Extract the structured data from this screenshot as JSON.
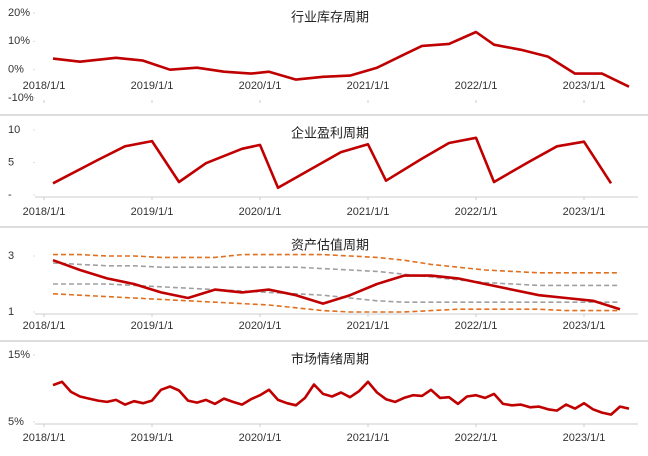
{
  "chart_data": [
    {
      "type": "line",
      "title": "行业库存周期",
      "x": [
        "2018/2/1",
        "2018/5/1",
        "2018/9/1",
        "2018/12/1",
        "2019/3/1",
        "2019/6/1",
        "2019/9/1",
        "2019/12/1",
        "2020/2/1",
        "2020/5/1",
        "2020/8/1",
        "2020/11/1",
        "2021/2/1",
        "2021/5/1",
        "2021/7/1",
        "2021/10/1",
        "2022/1/1",
        "2022/3/1",
        "2022/6/1",
        "2022/9/1",
        "2022/12/1",
        "2023/3/1",
        "2023/6/1"
      ],
      "series": [
        {
          "color": "#c00000",
          "values": [
            3.9,
            2.8,
            4.2,
            3.2,
            0,
            0.7,
            -0.7,
            -1.4,
            -0.7,
            -3.5,
            -2.5,
            -2.1,
            0.7,
            5.3,
            8.4,
            9.1,
            13.3,
            8.8,
            7,
            4.6,
            -1.4,
            -1.4,
            -6
          ]
        }
      ],
      "xlim": [
        "2017/12/1",
        "2023/7/1"
      ],
      "xticks": [
        "2018/1/1",
        "2019/1/1",
        "2020/1/1",
        "2021/1/1",
        "2022/1/1",
        "2023/1/1"
      ],
      "ylim": [
        -10,
        20
      ],
      "yticks": [
        {
          "value": 20,
          "label": "20%"
        },
        {
          "value": 10,
          "label": "10%"
        },
        {
          "value": 0,
          "label": "0%"
        },
        {
          "value": -10,
          "label": "-10%"
        }
      ]
    },
    {
      "type": "line",
      "title": "企业盈利周期",
      "x": [
        "2018/2/1",
        "2018/7/1",
        "2018/10/1",
        "2019/1/1",
        "2019/4/1",
        "2019/7/1",
        "2019/11/1",
        "2020/1/1",
        "2020/3/1",
        "2020/10/1",
        "2021/1/1",
        "2021/3/1",
        "2021/7/1",
        "2021/10/1",
        "2022/1/1",
        "2022/3/1",
        "2022/7/1",
        "2022/10/1",
        "2023/1/1",
        "2023/4/1"
      ],
      "series": [
        {
          "color": "#c00000",
          "values": [
            1.8,
            5.4,
            7.5,
            8.3,
            2.0,
            4.9,
            7.1,
            7.7,
            1.1,
            6.6,
            7.8,
            2.2,
            5.6,
            8.0,
            8.8,
            2.0,
            5.2,
            7.5,
            8.2,
            1.8
          ]
        }
      ],
      "xlim": [
        "2017/12/1",
        "2023/7/1"
      ],
      "xticks": [
        "2018/1/1",
        "2019/1/1",
        "2020/1/1",
        "2021/1/1",
        "2022/1/1",
        "2023/1/1"
      ],
      "ylim": [
        0,
        10
      ],
      "yticks": [
        10,
        5,
        {
          "value": 0,
          "label": "-"
        }
      ]
    },
    {
      "type": "line",
      "title": "资产估值周期",
      "x": [
        "2018/2/1",
        "2018/5/1",
        "2018/8/1",
        "2018/11/1",
        "2019/2/1",
        "2019/5/1",
        "2019/8/1",
        "2019/11/1",
        "2020/2/1",
        "2020/5/1",
        "2020/8/1",
        "2020/11/1",
        "2021/2/1",
        "2021/5/1",
        "2021/8/1",
        "2021/11/1",
        "2022/2/1",
        "2022/5/1",
        "2022/8/1",
        "2022/11/1",
        "2023/2/1",
        "2023/5/1"
      ],
      "series": [
        {
          "color": "#e07020",
          "dash": true,
          "values": [
            3.05,
            3.05,
            3.0,
            3.0,
            2.95,
            2.95,
            2.95,
            3.05,
            3.05,
            3.05,
            3.05,
            3.0,
            2.95,
            2.85,
            2.7,
            2.6,
            2.5,
            2.45,
            2.4,
            2.4,
            2.4,
            2.4
          ]
        },
        {
          "color": "#a0a0a0",
          "dash": true,
          "values": [
            2.75,
            2.7,
            2.65,
            2.65,
            2.6,
            2.6,
            2.6,
            2.6,
            2.6,
            2.6,
            2.55,
            2.5,
            2.45,
            2.35,
            2.25,
            2.15,
            2.05,
            2.0,
            1.95,
            1.95,
            1.95,
            1.95
          ]
        },
        {
          "color": "#a0a0a0",
          "dash": true,
          "values": [
            2.0,
            2.0,
            2.0,
            1.95,
            1.9,
            1.85,
            1.8,
            1.75,
            1.7,
            1.65,
            1.6,
            1.5,
            1.4,
            1.35,
            1.35,
            1.35,
            1.35,
            1.35,
            1.35,
            1.35,
            1.35,
            1.35
          ]
        },
        {
          "color": "#e07020",
          "dash": true,
          "values": [
            1.65,
            1.6,
            1.55,
            1.5,
            1.45,
            1.4,
            1.35,
            1.3,
            1.25,
            1.15,
            1.05,
            1.0,
            1.0,
            1.0,
            1.05,
            1.1,
            1.1,
            1.1,
            1.1,
            1.05,
            1.05,
            1.05
          ]
        },
        {
          "color": "#c00000",
          "values": [
            2.85,
            2.5,
            2.2,
            2.0,
            1.7,
            1.5,
            1.8,
            1.7,
            1.8,
            1.6,
            1.3,
            1.6,
            2.0,
            2.3,
            2.3,
            2.2,
            2.0,
            1.8,
            1.6,
            1.5,
            1.4,
            1.1
          ]
        }
      ],
      "xlim": [
        "2017/12/1",
        "2023/7/1"
      ],
      "xticks": [
        "2018/1/1",
        "2019/1/1",
        "2020/1/1",
        "2021/1/1",
        "2022/1/1",
        "2023/1/1"
      ],
      "ylim": [
        1,
        3
      ],
      "yticks": [
        3,
        1
      ]
    },
    {
      "type": "line",
      "title": "市场情绪周期",
      "x": [
        "2018/2/1",
        "2018/3/1",
        "2018/4/1",
        "2018/5/1",
        "2018/6/1",
        "2018/7/1",
        "2018/8/1",
        "2018/9/1",
        "2018/10/1",
        "2018/11/1",
        "2018/12/1",
        "2019/1/1",
        "2019/2/1",
        "2019/3/1",
        "2019/4/1",
        "2019/5/1",
        "2019/6/1",
        "2019/7/1",
        "2019/8/1",
        "2019/9/1",
        "2019/10/1",
        "2019/11/1",
        "2019/12/1",
        "2020/1/1",
        "2020/2/1",
        "2020/3/1",
        "2020/4/1",
        "2020/5/1",
        "2020/6/1",
        "2020/7/1",
        "2020/8/1",
        "2020/9/1",
        "2020/10/1",
        "2020/11/1",
        "2020/12/1",
        "2021/1/1",
        "2021/2/1",
        "2021/3/1",
        "2021/4/1",
        "2021/5/1",
        "2021/6/1",
        "2021/7/1",
        "2021/8/1",
        "2021/9/1",
        "2021/10/1",
        "2021/11/1",
        "2021/12/1",
        "2022/1/1",
        "2022/2/1",
        "2022/3/1",
        "2022/4/1",
        "2022/5/1",
        "2022/6/1",
        "2022/7/1",
        "2022/8/1",
        "2022/9/1",
        "2022/10/1",
        "2022/11/1",
        "2022/12/1",
        "2023/1/1",
        "2023/2/1",
        "2023/3/1",
        "2023/4/1",
        "2023/5/1",
        "2023/6/1"
      ],
      "series": [
        {
          "color": "#c00000",
          "values": [
            10.5,
            11,
            9.5,
            8.8,
            8.5,
            8.2,
            8.0,
            8.3,
            7.6,
            8.1,
            7.8,
            8.2,
            9.8,
            10.3,
            9.7,
            8.2,
            7.9,
            8.3,
            7.7,
            8.5,
            8.0,
            7.6,
            8.4,
            9.0,
            9.8,
            8.3,
            7.8,
            7.5,
            8.6,
            10.6,
            9.2,
            8.8,
            9.4,
            8.7,
            9.6,
            11.0,
            9.4,
            8.4,
            8.0,
            8.6,
            9.0,
            8.9,
            9.8,
            8.6,
            8.7,
            7.7,
            8.8,
            9.0,
            8.6,
            9.2,
            7.7,
            7.5,
            7.6,
            7.2,
            7.3,
            6.9,
            6.7,
            7.6,
            7.0,
            7.8,
            6.9,
            6.4,
            6.1,
            7.3,
            7.0
          ]
        }
      ],
      "xlim": [
        "2017/12/1",
        "2023/7/1"
      ],
      "xticks": [
        "2018/1/1",
        "2019/1/1",
        "2020/1/1",
        "2021/1/1",
        "2022/1/1",
        "2023/1/1"
      ],
      "ylim": [
        5,
        15
      ],
      "yticks": [
        {
          "value": 15,
          "label": "15%"
        },
        {
          "value": 5,
          "label": "5%"
        }
      ]
    }
  ]
}
